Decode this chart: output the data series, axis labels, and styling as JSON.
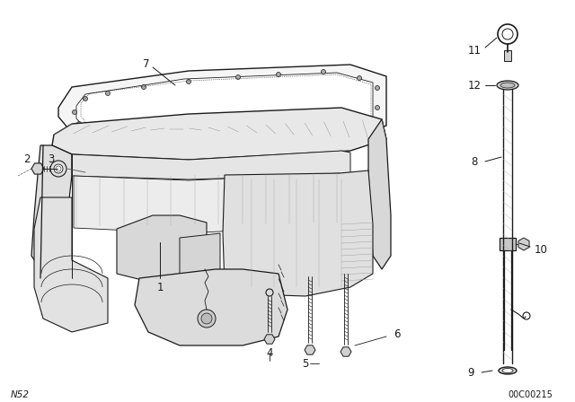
{
  "background_color": "#ffffff",
  "fig_width": 6.4,
  "fig_height": 4.48,
  "dpi": 100,
  "bottom_left_text": "N52",
  "bottom_right_text": "00C00215",
  "line_color": "#1a1a1a",
  "text_color": "#1a1a1a",
  "label_fontsize": 8.5
}
